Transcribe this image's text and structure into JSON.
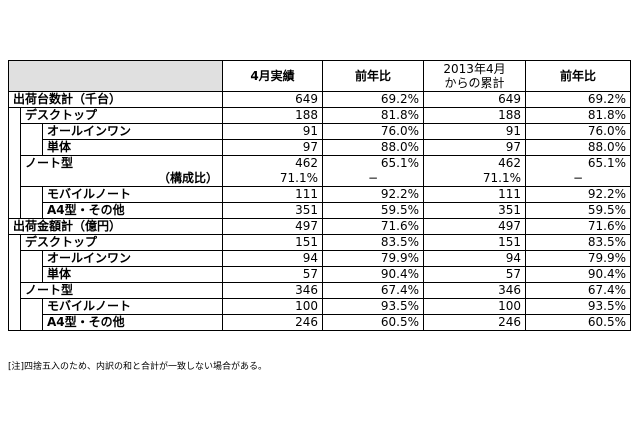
{
  "header": {
    "col1": "4月実績",
    "col2": "前年比",
    "col3_line1": "2013年4月",
    "col3_line2": "からの累計",
    "col4": "前年比"
  },
  "shipment_units": {
    "total": {
      "label": "出荷台数計（千台）",
      "v1": "649",
      "v2": "69.2%",
      "v3": "649",
      "v4": "69.2%"
    },
    "desktop": {
      "label": "デスクトップ",
      "v1": "188",
      "v2": "81.8%",
      "v3": "188",
      "v4": "81.8%"
    },
    "allinone": {
      "label": "オールインワン",
      "v1": "91",
      "v2": "76.0%",
      "v3": "91",
      "v4": "76.0%"
    },
    "single": {
      "label": "単体",
      "v1": "97",
      "v2": "88.0%",
      "v3": "97",
      "v4": "88.0%"
    },
    "notebook": {
      "label": "ノート型",
      "v1": "462",
      "v2": "65.1%",
      "v3": "462",
      "v4": "65.1%"
    },
    "ratio": {
      "label": "（構成比）",
      "v1": "71.1%",
      "v2": "−",
      "v3": "71.1%",
      "v4": "−"
    },
    "mobile": {
      "label": "モバイルノート",
      "v1": "111",
      "v2": "92.2%",
      "v3": "111",
      "v4": "92.2%"
    },
    "a4": {
      "label": "A4型・その他",
      "v1": "351",
      "v2": "59.5%",
      "v3": "351",
      "v4": "59.5%"
    }
  },
  "shipment_value": {
    "total": {
      "label": "出荷金額計（億円）",
      "v1": "497",
      "v2": "71.6%",
      "v3": "497",
      "v4": "71.6%"
    },
    "desktop": {
      "label": "デスクトップ",
      "v1": "151",
      "v2": "83.5%",
      "v3": "151",
      "v4": "83.5%"
    },
    "allinone": {
      "label": "オールインワン",
      "v1": "94",
      "v2": "79.9%",
      "v3": "94",
      "v4": "79.9%"
    },
    "single": {
      "label": "単体",
      "v1": "57",
      "v2": "90.4%",
      "v3": "57",
      "v4": "90.4%"
    },
    "notebook": {
      "label": "ノート型",
      "v1": "346",
      "v2": "67.4%",
      "v3": "346",
      "v4": "67.4%"
    },
    "mobile": {
      "label": "モバイルノート",
      "v1": "100",
      "v2": "93.5%",
      "v3": "100",
      "v4": "93.5%"
    },
    "a4": {
      "label": "A4型・その他",
      "v1": "246",
      "v2": "60.5%",
      "v3": "246",
      "v4": "60.5%"
    }
  },
  "footnote": "[注]四捨五入のため、内訳の和と合計が一致しない場合がある。"
}
